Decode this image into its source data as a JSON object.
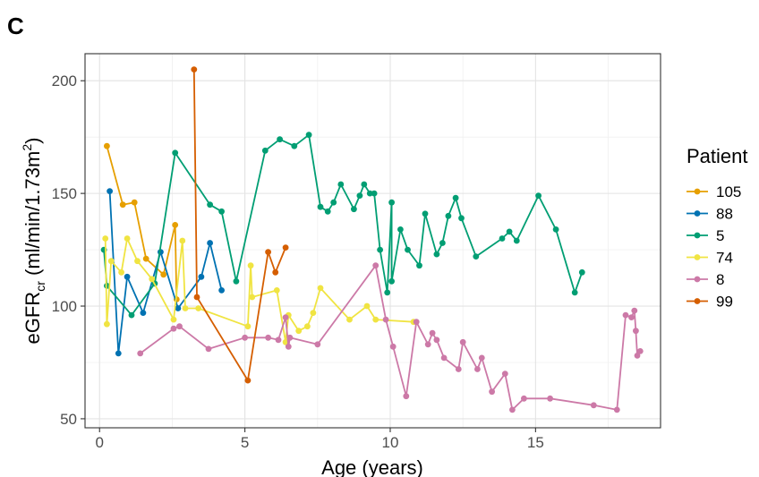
{
  "panel_label": "C",
  "chart_data": {
    "type": "line",
    "xlabel": "Age (years)",
    "ylabel": {
      "base": "eGFR",
      "sub": "cr",
      "unit_open": " (ml/min/1.73m",
      "sup": "2",
      "unit_close": ")"
    },
    "xlim": [
      -0.5,
      19.3
    ],
    "ylim": [
      46,
      212
    ],
    "x_ticks": [
      0,
      5,
      10,
      15
    ],
    "x_tick_labels": [
      "0",
      "5",
      "10",
      "15"
    ],
    "x_minor_ticks": [
      2.5,
      7.5,
      12.5,
      17.5
    ],
    "y_ticks": [
      50,
      100,
      150,
      200
    ],
    "y_tick_labels": [
      "50",
      "100",
      "150",
      "200"
    ],
    "y_minor_ticks": [
      75,
      125,
      175
    ],
    "grid": true,
    "legend": {
      "title": "Patient",
      "position": "right"
    },
    "series": [
      {
        "name": "105",
        "color": "#E69F00",
        "points": [
          [
            0.25,
            171
          ],
          [
            0.8,
            145
          ],
          [
            1.2,
            146
          ],
          [
            1.6,
            121
          ],
          [
            2.2,
            114
          ],
          [
            2.6,
            136
          ],
          [
            2.65,
            103
          ]
        ]
      },
      {
        "name": "88",
        "color": "#0072B2",
        "points": [
          [
            0.35,
            151
          ],
          [
            0.65,
            79
          ],
          [
            0.95,
            113
          ],
          [
            1.5,
            97
          ],
          [
            2.1,
            124
          ],
          [
            2.7,
            99
          ],
          [
            3.5,
            113
          ],
          [
            3.8,
            128
          ],
          [
            4.2,
            107
          ]
        ]
      },
      {
        "name": "5",
        "color": "#009E73",
        "points": [
          [
            0.15,
            125
          ],
          [
            0.25,
            109
          ],
          [
            1.1,
            96
          ],
          [
            1.9,
            110
          ],
          [
            2.6,
            168
          ],
          [
            3.8,
            145
          ],
          [
            4.2,
            142
          ],
          [
            4.7,
            111
          ],
          [
            5.7,
            169
          ],
          [
            6.2,
            174
          ],
          [
            6.7,
            171
          ],
          [
            7.2,
            176
          ],
          [
            7.6,
            144
          ],
          [
            7.85,
            142
          ],
          [
            8.05,
            146
          ],
          [
            8.3,
            154
          ],
          [
            8.75,
            143
          ],
          [
            8.95,
            149
          ],
          [
            9.1,
            154
          ],
          [
            9.3,
            150
          ],
          [
            9.45,
            150
          ],
          [
            9.65,
            125
          ],
          [
            9.9,
            106
          ],
          [
            10.05,
            146
          ],
          [
            10.05,
            111
          ],
          [
            10.35,
            134
          ],
          [
            10.6,
            125
          ],
          [
            11.0,
            118
          ],
          [
            11.2,
            141
          ],
          [
            11.6,
            123
          ],
          [
            11.8,
            128
          ],
          [
            12.0,
            140
          ],
          [
            12.25,
            148
          ],
          [
            12.45,
            139
          ],
          [
            12.95,
            122
          ],
          [
            13.85,
            130
          ],
          [
            14.1,
            133
          ],
          [
            14.35,
            129
          ],
          [
            15.1,
            149
          ],
          [
            15.7,
            134
          ],
          [
            16.35,
            106
          ],
          [
            16.6,
            115
          ]
        ]
      },
      {
        "name": "74",
        "color": "#F0E442",
        "points": [
          [
            0.2,
            130
          ],
          [
            0.25,
            92
          ],
          [
            0.4,
            120
          ],
          [
            0.75,
            115
          ],
          [
            0.95,
            130
          ],
          [
            1.3,
            120
          ],
          [
            1.8,
            112
          ],
          [
            2.55,
            94
          ],
          [
            2.85,
            129
          ],
          [
            2.95,
            99
          ],
          [
            3.4,
            99
          ],
          [
            5.1,
            91
          ],
          [
            5.2,
            118
          ],
          [
            5.25,
            104
          ],
          [
            6.1,
            107
          ],
          [
            6.4,
            84
          ],
          [
            6.5,
            96
          ],
          [
            6.85,
            89
          ],
          [
            7.15,
            91
          ],
          [
            7.35,
            97
          ],
          [
            7.6,
            108
          ],
          [
            8.6,
            94
          ],
          [
            9.2,
            100
          ],
          [
            9.5,
            94
          ],
          [
            10.8,
            93
          ]
        ]
      },
      {
        "name": "8",
        "color": "#CC79A7",
        "points": [
          [
            1.4,
            79
          ],
          [
            2.55,
            90
          ],
          [
            2.75,
            91
          ],
          [
            3.75,
            81
          ],
          [
            5.0,
            86
          ],
          [
            5.8,
            86
          ],
          [
            6.15,
            85
          ],
          [
            6.4,
            95
          ],
          [
            6.5,
            82
          ],
          [
            6.55,
            86
          ],
          [
            7.5,
            83
          ],
          [
            9.5,
            118
          ],
          [
            9.85,
            94
          ],
          [
            10.1,
            82
          ],
          [
            10.55,
            60
          ],
          [
            10.9,
            93
          ],
          [
            11.3,
            83
          ],
          [
            11.45,
            88
          ],
          [
            11.6,
            85
          ],
          [
            11.85,
            77
          ],
          [
            12.35,
            72
          ],
          [
            12.5,
            84
          ],
          [
            13.0,
            72
          ],
          [
            13.15,
            77
          ],
          [
            13.5,
            62
          ],
          [
            13.95,
            70
          ],
          [
            14.2,
            54
          ],
          [
            14.6,
            59
          ],
          [
            15.5,
            59
          ],
          [
            17.0,
            56
          ],
          [
            17.8,
            54
          ],
          [
            18.1,
            96
          ],
          [
            18.3,
            95
          ],
          [
            18.4,
            98
          ],
          [
            18.45,
            89
          ],
          [
            18.5,
            78
          ],
          [
            18.6,
            80
          ]
        ]
      },
      {
        "name": "99",
        "color": "#D55E00",
        "points": [
          [
            3.25,
            205
          ],
          [
            3.35,
            104
          ],
          [
            5.1,
            67
          ],
          [
            5.8,
            124
          ],
          [
            6.05,
            115
          ],
          [
            6.4,
            126
          ]
        ]
      }
    ]
  }
}
